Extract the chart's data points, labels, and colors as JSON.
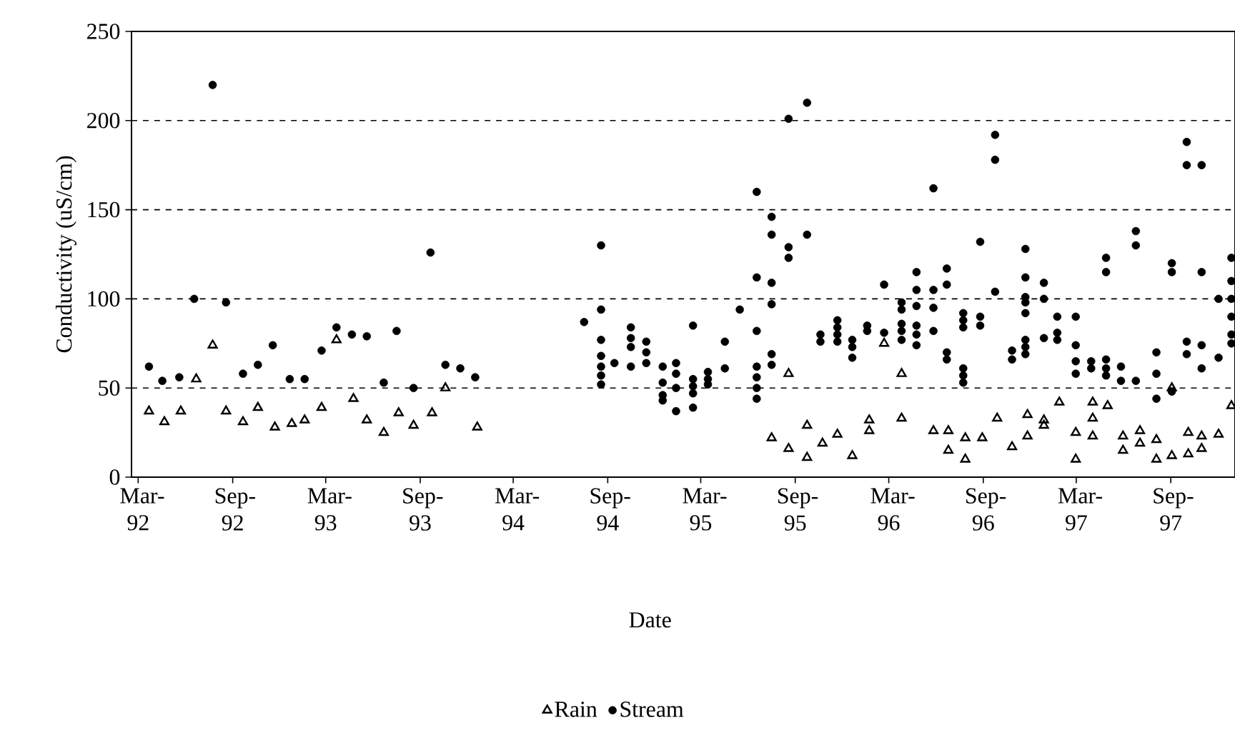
{
  "chart_data": {
    "type": "scatter",
    "xlabel": "Date",
    "ylabel": "Conductivity (uS/cm)",
    "xlim": [
      "1992-02-17",
      "1998-01-04"
    ],
    "ylim": [
      0,
      250
    ],
    "yticks": [
      0,
      50,
      100,
      150,
      200,
      250
    ],
    "xticks": [
      {
        "value": "1992-03-01",
        "label": "Mar-92"
      },
      {
        "value": "1992-09-01",
        "label": "Sep-92"
      },
      {
        "value": "1993-03-01",
        "label": "Mar-93"
      },
      {
        "value": "1993-09-01",
        "label": "Sep-93"
      },
      {
        "value": "1994-03-01",
        "label": "Mar-94"
      },
      {
        "value": "1994-09-01",
        "label": "Sep-94"
      },
      {
        "value": "1995-03-01",
        "label": "Mar-95"
      },
      {
        "value": "1995-09-01",
        "label": "Sep-95"
      },
      {
        "value": "1996-03-01",
        "label": "Mar-96"
      },
      {
        "value": "1996-09-01",
        "label": "Sep-96"
      },
      {
        "value": "1997-03-01",
        "label": "Mar-97"
      },
      {
        "value": "1997-09-01",
        "label": "Sep-97"
      }
    ],
    "grid": "y",
    "legend": "bottom",
    "series": [
      {
        "name": "Rain",
        "color": "#000000",
        "marker": "triangle",
        "x": [
          "1992-03-22",
          "1992-04-21",
          "1992-05-23",
          "1992-06-22",
          "1992-07-24",
          "1992-08-19",
          "1992-09-21",
          "1992-10-20",
          "1992-11-22",
          "1992-12-25",
          "1993-01-19",
          "1993-02-21",
          "1993-03-22",
          "1993-04-24",
          "1993-05-20",
          "1993-06-22",
          "1993-07-21",
          "1993-08-19",
          "1993-09-24",
          "1993-10-20",
          "1993-12-21",
          "1995-07-17",
          "1995-08-19",
          "1995-08-19",
          "1995-09-24",
          "1995-09-24",
          "1995-10-24",
          "1995-11-22",
          "1995-12-21",
          "1996-01-23",
          "1996-01-23",
          "1996-02-21",
          "1996-03-26",
          "1996-03-26",
          "1996-05-27",
          "1996-06-25",
          "1996-06-25",
          "1996-07-28",
          "1996-07-28",
          "1996-08-30",
          "1996-09-28",
          "1996-10-27",
          "1996-11-26",
          "1996-11-26",
          "1996-12-28",
          "1996-12-28",
          "1997-01-27",
          "1997-02-28",
          "1997-02-28",
          "1997-04-02",
          "1997-04-02",
          "1997-04-02",
          "1997-05-01",
          "1997-05-31",
          "1997-05-31",
          "1997-07-03",
          "1997-07-03",
          "1997-08-04",
          "1997-08-04",
          "1997-09-03",
          "1997-09-03",
          "1997-10-05",
          "1997-10-05",
          "1997-10-31",
          "1997-10-31",
          "1997-12-03",
          "1997-12-28"
        ],
        "values": [
          37,
          31,
          37,
          55,
          74,
          37,
          31,
          39,
          28,
          30,
          32,
          39,
          77,
          44,
          32,
          25,
          36,
          29,
          36,
          50,
          28,
          22,
          58,
          16,
          11,
          29,
          19,
          24,
          12,
          32,
          26,
          75,
          58,
          33,
          26,
          26,
          15,
          22,
          10,
          22,
          33,
          17,
          35,
          23,
          32,
          29,
          42,
          25,
          10,
          42,
          33,
          23,
          40,
          23,
          15,
          26,
          19,
          21,
          10,
          50,
          12,
          25,
          13,
          23,
          16,
          24,
          40
        ]
      },
      {
        "name": "Stream",
        "color": "#000000",
        "marker": "circle",
        "x": [
          "1992-03-22",
          "1992-04-17",
          "1992-05-20",
          "1992-06-18",
          "1992-07-24",
          "1992-08-19",
          "1992-09-21",
          "1992-10-20",
          "1992-11-18",
          "1992-12-21",
          "1993-01-19",
          "1993-02-21",
          "1993-03-22",
          "1993-04-21",
          "1993-05-20",
          "1993-06-22",
          "1993-07-17",
          "1993-08-19",
          "1993-09-21",
          "1993-10-20",
          "1993-11-18",
          "1993-12-17",
          "1994-07-17",
          "1994-08-19",
          "1994-08-19",
          "1994-08-19",
          "1994-08-19",
          "1994-08-19",
          "1994-08-19",
          "1994-08-19",
          "1994-09-14",
          "1994-10-16",
          "1994-10-16",
          "1994-10-16",
          "1994-10-16",
          "1994-11-15",
          "1994-11-15",
          "1994-11-15",
          "1994-12-17",
          "1994-12-17",
          "1994-12-17",
          "1994-12-17",
          "1995-01-12",
          "1995-01-12",
          "1995-01-12",
          "1995-01-12",
          "1995-02-14",
          "1995-02-14",
          "1995-02-14",
          "1995-02-14",
          "1995-02-14",
          "1995-03-15",
          "1995-03-15",
          "1995-03-15",
          "1995-04-17",
          "1995-04-17",
          "1995-05-16",
          "1995-06-18",
          "1995-06-18",
          "1995-06-18",
          "1995-06-18",
          "1995-06-18",
          "1995-06-18",
          "1995-06-18",
          "1995-07-17",
          "1995-07-17",
          "1995-07-17",
          "1995-07-17",
          "1995-07-17",
          "1995-07-17",
          "1995-08-19",
          "1995-08-19",
          "1995-08-19",
          "1995-09-24",
          "1995-09-24",
          "1995-10-20",
          "1995-10-20",
          "1995-11-22",
          "1995-11-22",
          "1995-11-22",
          "1995-11-22",
          "1995-12-21",
          "1995-12-21",
          "1995-12-21",
          "1996-01-19",
          "1996-01-19",
          "1996-02-21",
          "1996-02-21",
          "1996-03-26",
          "1996-03-26",
          "1996-03-26",
          "1996-03-26",
          "1996-03-26",
          "1996-04-24",
          "1996-04-24",
          "1996-04-24",
          "1996-04-24",
          "1996-04-24",
          "1996-04-24",
          "1996-05-27",
          "1996-05-27",
          "1996-05-27",
          "1996-05-27",
          "1996-06-22",
          "1996-06-22",
          "1996-06-22",
          "1996-06-22",
          "1996-07-24",
          "1996-07-24",
          "1996-07-24",
          "1996-07-24",
          "1996-07-24",
          "1996-07-24",
          "1996-08-26",
          "1996-08-26",
          "1996-08-26",
          "1996-09-24",
          "1996-09-24",
          "1996-09-24",
          "1996-10-27",
          "1996-10-27",
          "1996-11-22",
          "1996-11-22",
          "1996-11-22",
          "1996-11-22",
          "1996-11-22",
          "1996-11-22",
          "1996-11-22",
          "1996-11-22",
          "1996-12-28",
          "1996-12-28",
          "1996-12-28",
          "1997-01-23",
          "1997-01-23",
          "1997-01-23",
          "1997-02-28",
          "1997-02-28",
          "1997-02-28",
          "1997-02-28",
          "1997-03-30",
          "1997-03-30",
          "1997-04-28",
          "1997-04-28",
          "1997-04-28",
          "1997-04-28",
          "1997-04-28",
          "1997-05-27",
          "1997-05-27",
          "1997-06-25",
          "1997-06-25",
          "1997-06-25",
          "1997-08-04",
          "1997-08-04",
          "1997-08-04",
          "1997-09-03",
          "1997-09-03",
          "1997-09-03",
          "1997-10-02",
          "1997-10-02",
          "1997-10-02",
          "1997-10-02",
          "1997-10-31",
          "1997-10-31",
          "1997-10-31",
          "1997-10-31",
          "1997-12-03",
          "1997-12-03",
          "1997-12-28",
          "1997-12-28",
          "1997-12-28",
          "1997-12-28",
          "1997-12-28",
          "1997-12-28"
        ],
        "values": [
          62,
          54,
          56,
          100,
          220,
          98,
          58,
          63,
          74,
          55,
          55,
          71,
          84,
          80,
          79,
          53,
          82,
          50,
          126,
          63,
          61,
          56,
          87,
          130,
          94,
          77,
          68,
          62,
          57,
          52,
          64,
          84,
          78,
          73,
          62,
          76,
          70,
          64,
          62,
          53,
          46,
          43,
          64,
          58,
          50,
          37,
          85,
          55,
          51,
          47,
          39,
          59,
          55,
          52,
          76,
          61,
          94,
          160,
          112,
          82,
          62,
          56,
          50,
          44,
          146,
          136,
          109,
          97,
          69,
          63,
          201,
          129,
          123,
          210,
          136,
          80,
          76,
          88,
          84,
          80,
          76,
          77,
          73,
          67,
          85,
          82,
          108,
          81,
          98,
          94,
          86,
          82,
          77,
          115,
          105,
          96,
          85,
          80,
          74,
          162,
          105,
          95,
          82,
          117,
          108,
          70,
          66,
          92,
          88,
          84,
          61,
          57,
          53,
          132,
          90,
          85,
          192,
          178,
          104,
          71,
          66,
          128,
          112,
          101,
          98,
          92,
          77,
          73,
          69,
          109,
          100,
          78,
          90,
          81,
          77,
          90,
          74,
          65,
          58,
          65,
          61,
          123,
          115,
          66,
          61,
          57,
          62,
          54,
          138,
          130,
          54,
          70,
          58,
          44,
          120,
          115,
          48,
          188,
          175,
          76,
          69,
          175,
          115,
          74,
          61,
          100,
          67,
          123,
          110,
          100,
          90,
          80,
          75
        ]
      }
    ]
  }
}
